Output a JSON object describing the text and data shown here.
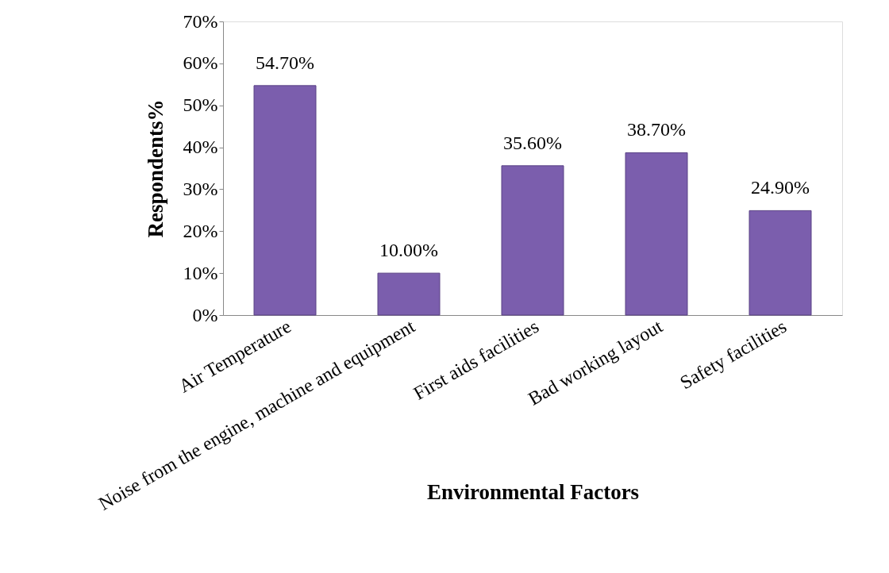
{
  "chart_data": {
    "type": "bar",
    "xlabel": "Environmental Factors",
    "ylabel": "Respondents%",
    "categories": [
      "Air Temperature",
      "Noise from the engine, machine and equipment",
      "First aids facilities",
      "Bad working layout",
      "Safety facilities"
    ],
    "values": [
      54.7,
      10.0,
      35.6,
      38.7,
      24.9
    ],
    "value_labels": [
      "54.70%",
      "10.00%",
      "35.60%",
      "38.70%",
      "24.90%"
    ],
    "color": "#7b5ead",
    "ylim": [
      0,
      70
    ],
    "yticks": [
      {
        "value": 0,
        "label": "0%"
      },
      {
        "value": 10,
        "label": "10%"
      },
      {
        "value": 20,
        "label": "20%"
      },
      {
        "value": 30,
        "label": "30%"
      },
      {
        "value": 40,
        "label": "40%"
      },
      {
        "value": 50,
        "label": "50%"
      },
      {
        "value": 60,
        "label": "60%"
      },
      {
        "value": 70,
        "label": "70%"
      }
    ],
    "grid": false
  }
}
